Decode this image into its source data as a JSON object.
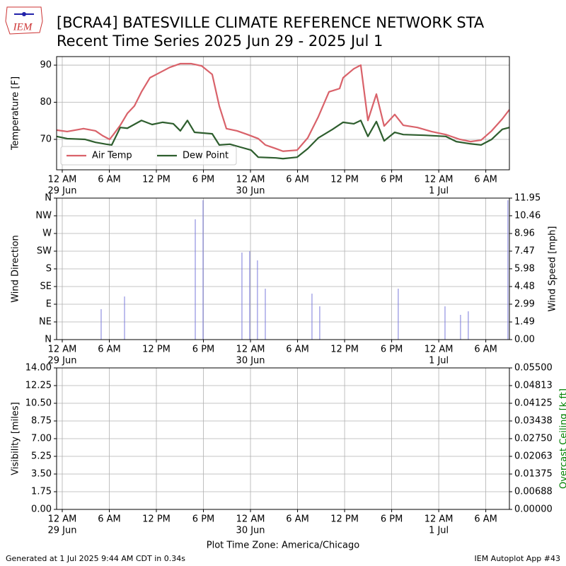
{
  "header": {
    "logo": "IEM",
    "title": "[BCRA4] BATESVILLE CLIMATE REFERENCE NETWORK STA",
    "subtitle": "Recent Time Series 2025 Jun 29 - 2025 Jul 1"
  },
  "footer": {
    "left": "Generated at 1 Jul 2025 9:44 AM CDT in 0.34s",
    "right": "IEM Autoplot App #43"
  },
  "chart_data": [
    {
      "type": "line",
      "ylabel": "Temperature [F]",
      "grid": true,
      "legend": "lower left",
      "xlim": [
        -0.72,
        57.01
      ],
      "ylim": [
        61.8,
        92.3
      ],
      "yticks": [
        70,
        80,
        90
      ],
      "xticks": [
        {
          "value": 0,
          "label": "12 AM",
          "date": "29 Jun"
        },
        {
          "value": 6,
          "label": "6 AM"
        },
        {
          "value": 12,
          "label": "12 PM"
        },
        {
          "value": 18,
          "label": "6 PM"
        },
        {
          "value": 24,
          "label": "12 AM",
          "date": "30 Jun"
        },
        {
          "value": 30,
          "label": "6 AM"
        },
        {
          "value": 36,
          "label": "12 PM"
        },
        {
          "value": 42,
          "label": "6 PM"
        },
        {
          "value": 48,
          "label": "12 AM",
          "date": "1 Jul"
        },
        {
          "value": 54,
          "label": "6 AM"
        }
      ],
      "series": [
        {
          "name": "Air Temp",
          "color": "#d9626a",
          "x": [
            -0.72,
            0.63,
            2.71,
            4.24,
            5.14,
            6.04,
            6.49,
            7.4,
            8.3,
            9.2,
            10.1,
            11.18,
            12.36,
            13.71,
            15.06,
            16.42,
            17.77,
            19.12,
            20.02,
            20.93,
            22.28,
            23.63,
            24.99,
            25.89,
            27.24,
            28.14,
            29.95,
            31.3,
            32.65,
            34.01,
            35.36,
            35.81,
            37.16,
            38.06,
            38.97,
            40.05,
            41.04,
            42.39,
            43.48,
            45.28,
            47.08,
            48.89,
            50.69,
            52.05,
            53.4,
            54.75,
            56.1,
            57.01
          ],
          "values": [
            72.5,
            72.1,
            72.9,
            72.3,
            71,
            70,
            71.2,
            73.8,
            77,
            79,
            82.8,
            86.6,
            87.9,
            89.4,
            90.4,
            90.4,
            89.8,
            87.5,
            79,
            72.9,
            72.3,
            71.3,
            70.2,
            68.5,
            67.5,
            66.8,
            67.1,
            70.4,
            76.1,
            82.8,
            83.7,
            86.6,
            89,
            90,
            75.1,
            82.2,
            73.6,
            76.7,
            73.8,
            73.2,
            72.1,
            71.3,
            70,
            69.4,
            69.8,
            72.3,
            75.5,
            78
          ]
        },
        {
          "name": "Dew Point",
          "color": "#2e5e2e",
          "x": [
            -0.72,
            0.63,
            2.89,
            4.24,
            5.59,
            6.31,
            7.4,
            8.3,
            10.1,
            11.46,
            12.81,
            14.16,
            15.06,
            15.96,
            16.87,
            19.12,
            20.02,
            21.38,
            22.73,
            24.08,
            24.99,
            27.24,
            28.14,
            29.95,
            31.3,
            32.65,
            34.46,
            35.81,
            37.16,
            38.06,
            38.97,
            40.05,
            41.04,
            42.39,
            43.48,
            46.18,
            48.89,
            50.24,
            52.05,
            53.4,
            54.75,
            56.1,
            57.01
          ],
          "values": [
            70.8,
            70.2,
            70,
            69.2,
            68.7,
            68.5,
            73.2,
            73,
            75.1,
            74,
            74.6,
            74.2,
            72.3,
            75.1,
            71.9,
            71.5,
            68.5,
            68.7,
            67.9,
            67.1,
            65.2,
            65,
            64.8,
            65.2,
            67.5,
            70.4,
            72.7,
            74.6,
            74.2,
            75.1,
            70.8,
            74.8,
            69.6,
            71.9,
            71.3,
            71.1,
            70.8,
            69.4,
            68.8,
            68.5,
            70,
            72.7,
            73.2
          ]
        }
      ]
    },
    {
      "type": "bar",
      "ylabel": "Wind Direction",
      "y2label": "Wind Speed [mph]",
      "grid": true,
      "xlim": [
        -0.72,
        57.01
      ],
      "ylim": [
        0,
        360
      ],
      "y2lim": [
        0,
        11.95
      ],
      "yticks": [
        {
          "value": 0,
          "label": "N"
        },
        {
          "value": 45,
          "label": "NE"
        },
        {
          "value": 90,
          "label": "E"
        },
        {
          "value": 135,
          "label": "SE"
        },
        {
          "value": 180,
          "label": "S"
        },
        {
          "value": 225,
          "label": "SW"
        },
        {
          "value": 270,
          "label": "W"
        },
        {
          "value": 315,
          "label": "NW"
        },
        {
          "value": 360,
          "label": "N"
        }
      ],
      "y2ticks": [
        {
          "value": 0,
          "label": "0.00"
        },
        1.49,
        2.99,
        4.48,
        5.98,
        7.47,
        8.96,
        10.46,
        11.95
      ],
      "xticks": [
        {
          "value": 0,
          "label": "12 AM",
          "date": "29 Jun"
        },
        {
          "value": 6,
          "label": "6 AM"
        },
        {
          "value": 12,
          "label": "12 PM"
        },
        {
          "value": 18,
          "label": "6 PM"
        },
        {
          "value": 24,
          "label": "12 AM",
          "date": "30 Jun"
        },
        {
          "value": 30,
          "label": "6 AM"
        },
        {
          "value": 36,
          "label": "12 PM"
        },
        {
          "value": 42,
          "label": "6 PM"
        },
        {
          "value": 48,
          "label": "12 AM",
          "date": "1 Jul"
        },
        {
          "value": 54,
          "label": "6 AM"
        }
      ],
      "series": [
        {
          "axis": "y2",
          "color": "#7b7bdb",
          "x": [
            4.96,
            7.94,
            16.96,
            17.95,
            22.91,
            23.9,
            24.89,
            25.89,
            31.84,
            32.83,
            42.84,
            48.8,
            50.78,
            51.77,
            56.82
          ],
          "values": [
            2.57,
            3.64,
            10.16,
            11.77,
            7.35,
            7.47,
            6.69,
            4.3,
            3.88,
            2.81,
            4.3,
            2.81,
            2.09,
            2.39,
            11.77
          ]
        }
      ]
    },
    {
      "type": "line",
      "ylabel": "Visibility [miles]",
      "y2label": "Overcast Ceiling [k ft]",
      "y2label_color": "#008000",
      "grid": true,
      "xlabel": "Plot Time Zone: America/Chicago",
      "xlim": [
        -0.72,
        57.01
      ],
      "ylim": [
        0,
        14
      ],
      "y2lim": [
        0,
        0.055
      ],
      "yticks": [
        {
          "value": 0,
          "label": "0.00"
        },
        1.75,
        {
          "value": 3.5,
          "label": "3.50"
        },
        5.25,
        {
          "value": 7,
          "label": "7.00"
        },
        8.75,
        {
          "value": 10.5,
          "label": "10.50"
        },
        12.25,
        {
          "value": 14,
          "label": "14.00"
        }
      ],
      "y2ticks": [
        {
          "value": 0,
          "label": "0.00000"
        },
        {
          "value": 0.006875,
          "label": "0.00688"
        },
        {
          "value": 0.01375,
          "label": "0.01375"
        },
        {
          "value": 0.020625,
          "label": "0.02063"
        },
        {
          "value": 0.0275,
          "label": "0.02750"
        },
        {
          "value": 0.034375,
          "label": "0.03438"
        },
        {
          "value": 0.04125,
          "label": "0.04125"
        },
        {
          "value": 0.048125,
          "label": "0.04813"
        },
        {
          "value": 0.055,
          "label": "0.05500"
        }
      ],
      "xticks": [
        {
          "value": 0,
          "label": "12 AM",
          "date": "29 Jun"
        },
        {
          "value": 6,
          "label": "6 AM"
        },
        {
          "value": 12,
          "label": "12 PM"
        },
        {
          "value": 18,
          "label": "6 PM"
        },
        {
          "value": 24,
          "label": "12 AM",
          "date": "30 Jun"
        },
        {
          "value": 30,
          "label": "6 AM"
        },
        {
          "value": 36,
          "label": "12 PM"
        },
        {
          "value": 42,
          "label": "6 PM"
        },
        {
          "value": 48,
          "label": "12 AM",
          "date": "1 Jul"
        },
        {
          "value": 54,
          "label": "6 AM"
        }
      ],
      "series": []
    }
  ]
}
